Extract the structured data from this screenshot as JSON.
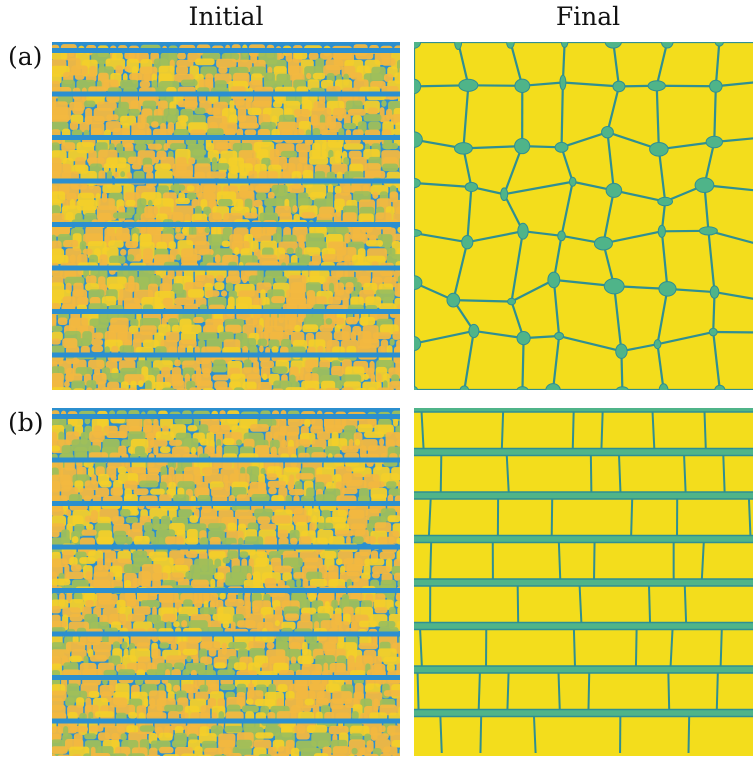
{
  "columns": {
    "initial": "Initial",
    "final": "Final"
  },
  "rows": [
    {
      "label": "(a)"
    },
    {
      "label": "(b)"
    }
  ],
  "colors": {
    "initial_boundary": "#2b8fcf",
    "initial_grain_a": "#f2b840",
    "initial_grain_b": "#f3cf2a",
    "initial_grain_c": "#9fbf5a",
    "final_grain": "#f3dd1c",
    "final_boundary": "#2f8f93",
    "final_junction": "#4fb489"
  }
}
